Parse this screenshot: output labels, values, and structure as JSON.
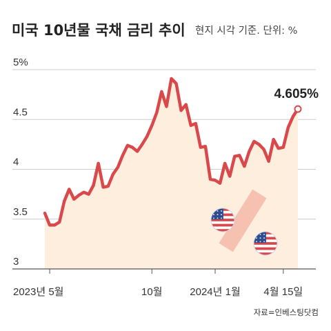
{
  "title": "미국 10년물 국채 금리 추이",
  "subtitle": "현지 시각 기준. 단위: %",
  "source": "자료=인베스팅닷컴",
  "colors": {
    "line": "#d9484b",
    "area": "#fdeedd",
    "grid": "#cccccc",
    "text": "#333333",
    "flag_blue": "#2f4b8f",
    "flag_red": "#d9484b",
    "percent_bar": "#f5b8a8"
  },
  "decoration": {
    "icon": "us-flag-percent-icon"
  },
  "chart_data": {
    "type": "line",
    "title": "미국 10년물 국채 금리 추이",
    "ylabel": "단위: %",
    "xlabel": "",
    "ylim": [
      3,
      5
    ],
    "yticks": [
      "5%",
      "4.5",
      "4",
      "3.5",
      "3"
    ],
    "ytick_values": [
      5,
      4.5,
      4,
      3.5,
      3
    ],
    "grid": true,
    "legend": "none",
    "xticks": [
      {
        "label": "2023년 5월",
        "index": 1
      },
      {
        "label": "10월",
        "index": 22
      },
      {
        "label": "2024년 1월",
        "index": 35
      },
      {
        "label": "4월 15일",
        "index": 49
      }
    ],
    "end_label": "4.605%",
    "series": [
      {
        "values": [
          3.56,
          3.44,
          3.44,
          3.47,
          3.68,
          3.8,
          3.7,
          3.74,
          3.77,
          3.75,
          3.84,
          4.06,
          3.82,
          3.83,
          3.95,
          4.02,
          4.14,
          4.24,
          4.22,
          4.18,
          4.25,
          4.33,
          4.44,
          4.57,
          4.78,
          4.63,
          4.91,
          4.86,
          4.59,
          4.65,
          4.44,
          4.46,
          4.22,
          4.23,
          3.9,
          3.89,
          3.86,
          4.06,
          3.93,
          4.13,
          4.14,
          4.03,
          4.18,
          4.28,
          4.25,
          4.2,
          4.08,
          4.3,
          4.21,
          4.22,
          4.42,
          4.53,
          4.605
        ]
      }
    ]
  }
}
